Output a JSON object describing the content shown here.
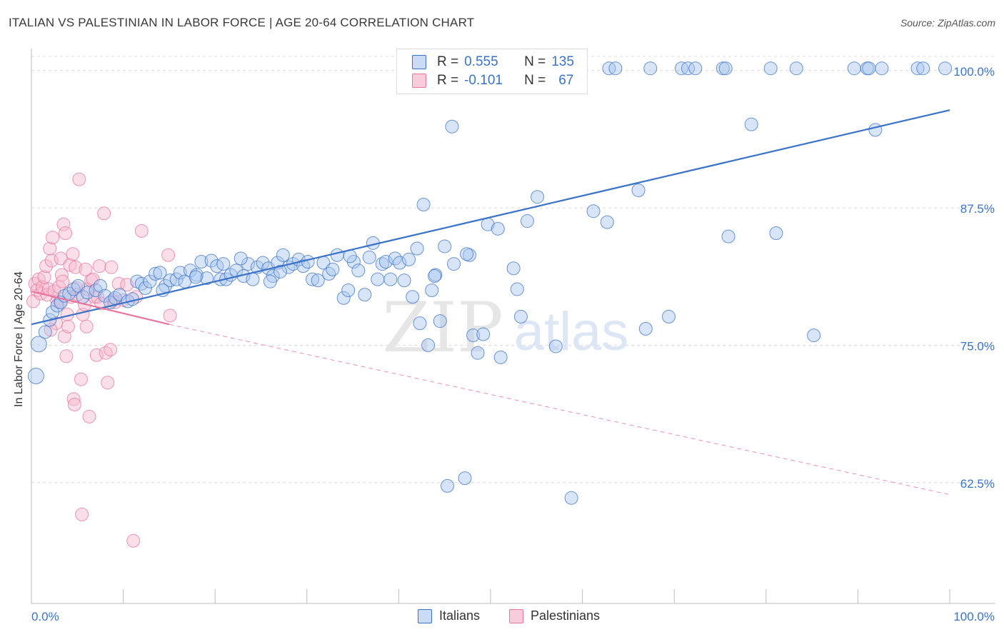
{
  "title": "ITALIAN VS PALESTINIAN IN LABOR FORCE | AGE 20-64 CORRELATION CHART",
  "source": "Source: ZipAtlas.com",
  "watermark": {
    "zip": "ZIP",
    "atlas": "atlas"
  },
  "colors": {
    "blue": "#3b73c8",
    "blue_fill": "#a9c6ef",
    "pink": "#e8769c",
    "pink_fill": "#f6b8cc",
    "grid": "#dcdcdc",
    "axis_text": "#3b73c8"
  },
  "legend_top": {
    "rows": [
      {
        "r_label": "R =",
        "r_value": "0.555",
        "n_label": "N =",
        "n_value": "135"
      },
      {
        "r_label": "R =",
        "r_value": "-0.101",
        "n_label": "N =",
        "n_value": "67"
      }
    ]
  },
  "legend_bottom": [
    "Italians",
    "Palestinians"
  ],
  "chart_data": {
    "type": "scatter",
    "title": "ITALIAN VS PALESTINIAN IN LABOR FORCE | AGE 20-64 CORRELATION CHART",
    "xlabel": "",
    "ylabel": "In Labor Force | Age 20-64",
    "xlim": [
      0,
      100
    ],
    "ylim": [
      51.5,
      102
    ],
    "x_tick_labels": [
      "0.0%",
      "100.0%"
    ],
    "y_ticks": [
      62.5,
      75.0,
      87.5,
      100.0
    ],
    "y_tick_labels": [
      "62.5%",
      "75.0%",
      "87.5%",
      "100.0%"
    ],
    "grid": true,
    "legend_position": "top-center",
    "series": [
      {
        "name": "Italians",
        "color": "#3b73c8",
        "fill": "#a9c6ef",
        "r": 0.555,
        "n": 135,
        "trend": {
          "x": [
            0,
            100
          ],
          "y": [
            76.9,
            96.4
          ],
          "style": "solid"
        },
        "points": [
          [
            0.5,
            72.2
          ],
          [
            0.8,
            75.1
          ],
          [
            1.5,
            76.2
          ],
          [
            2.0,
            77.3
          ],
          [
            2.3,
            78.0
          ],
          [
            2.8,
            78.6
          ],
          [
            3.2,
            78.9
          ],
          [
            3.6,
            79.5
          ],
          [
            4.1,
            79.7
          ],
          [
            4.6,
            80.1
          ],
          [
            5.1,
            80.4
          ],
          [
            5.6,
            79.4
          ],
          [
            6.1,
            79.8
          ],
          [
            7.0,
            80.0
          ],
          [
            7.5,
            80.4
          ],
          [
            8.0,
            79.5
          ],
          [
            8.6,
            78.9
          ],
          [
            9.1,
            79.3
          ],
          [
            9.6,
            79.6
          ],
          [
            10.5,
            79.0
          ],
          [
            11.0,
            79.2
          ],
          [
            11.5,
            80.8
          ],
          [
            12.0,
            80.6
          ],
          [
            12.4,
            80.2
          ],
          [
            12.9,
            80.8
          ],
          [
            13.5,
            81.5
          ],
          [
            14.0,
            81.6
          ],
          [
            14.6,
            80.4
          ],
          [
            15.1,
            80.9
          ],
          [
            15.8,
            81.0
          ],
          [
            16.2,
            81.6
          ],
          [
            16.7,
            80.8
          ],
          [
            17.3,
            81.8
          ],
          [
            18.0,
            81.4
          ],
          [
            18.5,
            82.6
          ],
          [
            19.1,
            81.1
          ],
          [
            19.6,
            82.7
          ],
          [
            20.2,
            82.2
          ],
          [
            20.6,
            81.0
          ],
          [
            21.2,
            81.0
          ],
          [
            21.7,
            81.4
          ],
          [
            22.3,
            81.8
          ],
          [
            23.1,
            81.3
          ],
          [
            23.6,
            82.4
          ],
          [
            24.1,
            81.0
          ],
          [
            24.6,
            82.1
          ],
          [
            25.2,
            82.5
          ],
          [
            25.8,
            82.0
          ],
          [
            26.3,
            81.3
          ],
          [
            26.8,
            82.5
          ],
          [
            27.4,
            83.2
          ],
          [
            28.0,
            82.1
          ],
          [
            28.5,
            82.4
          ],
          [
            29.1,
            82.8
          ],
          [
            29.6,
            82.2
          ],
          [
            30.1,
            82.6
          ],
          [
            30.6,
            81.0
          ],
          [
            31.2,
            80.9
          ],
          [
            31.8,
            82.5
          ],
          [
            32.4,
            81.5
          ],
          [
            32.8,
            81.9
          ],
          [
            33.3,
            83.2
          ],
          [
            34.0,
            79.3
          ],
          [
            34.5,
            80.0
          ],
          [
            35.1,
            82.6
          ],
          [
            35.6,
            81.8
          ],
          [
            36.3,
            79.6
          ],
          [
            36.8,
            83.0
          ],
          [
            37.2,
            84.3
          ],
          [
            37.7,
            81.0
          ],
          [
            38.2,
            82.4
          ],
          [
            38.6,
            82.6
          ],
          [
            39.1,
            81.0
          ],
          [
            39.6,
            82.9
          ],
          [
            40.1,
            82.5
          ],
          [
            40.6,
            80.9
          ],
          [
            41.1,
            82.8
          ],
          [
            41.5,
            79.4
          ],
          [
            42.0,
            83.8
          ],
          [
            42.3,
            77.0
          ],
          [
            42.7,
            87.8
          ],
          [
            43.2,
            75.0
          ],
          [
            43.6,
            80.0
          ],
          [
            44.0,
            81.4
          ],
          [
            44.5,
            77.2
          ],
          [
            45.0,
            84.0
          ],
          [
            45.3,
            62.2
          ],
          [
            45.8,
            94.9
          ],
          [
            47.2,
            62.9
          ],
          [
            47.7,
            83.2
          ],
          [
            48.1,
            75.9
          ],
          [
            48.6,
            74.3
          ],
          [
            49.7,
            86.0
          ],
          [
            50.8,
            85.6
          ],
          [
            51.1,
            73.9
          ],
          [
            52.5,
            82.0
          ],
          [
            52.9,
            80.1
          ],
          [
            53.3,
            77.6
          ],
          [
            54.0,
            86.3
          ],
          [
            55.1,
            88.5
          ],
          [
            57.1,
            74.9
          ],
          [
            58.8,
            61.1
          ],
          [
            61.2,
            87.2
          ],
          [
            62.7,
            86.2
          ],
          [
            62.9,
            100.2
          ],
          [
            63.6,
            100.2
          ],
          [
            66.1,
            89.1
          ],
          [
            67.4,
            100.2
          ],
          [
            69.4,
            77.6
          ],
          [
            70.8,
            100.2
          ],
          [
            71.5,
            100.2
          ],
          [
            72.3,
            100.2
          ],
          [
            75.3,
            100.2
          ],
          [
            75.6,
            100.2
          ],
          [
            75.9,
            84.9
          ],
          [
            78.4,
            95.1
          ],
          [
            80.5,
            100.2
          ],
          [
            83.3,
            100.2
          ],
          [
            85.2,
            75.9
          ],
          [
            89.6,
            100.2
          ],
          [
            91.0,
            100.2
          ],
          [
            91.2,
            100.2
          ],
          [
            91.9,
            94.6
          ],
          [
            92.6,
            100.2
          ],
          [
            96.5,
            100.2
          ],
          [
            97.1,
            100.2
          ],
          [
            99.5,
            100.2
          ],
          [
            66.9,
            76.5
          ],
          [
            81.1,
            85.2
          ],
          [
            49.2,
            76.0
          ],
          [
            14.3,
            80.0
          ],
          [
            27.1,
            81.7
          ],
          [
            34.7,
            83.1
          ],
          [
            43.9,
            81.3
          ],
          [
            46.0,
            82.4
          ],
          [
            47.4,
            83.3
          ],
          [
            26.0,
            80.8
          ],
          [
            22.8,
            82.9
          ],
          [
            17.9,
            81.2
          ],
          [
            20.9,
            82.4
          ]
        ]
      },
      {
        "name": "Palestinians",
        "color": "#e8769c",
        "fill": "#f6b8cc",
        "r": -0.101,
        "n": 67,
        "trend": {
          "x": [
            0,
            15
          ],
          "y": [
            79.9,
            76.9
          ],
          "style": "solid",
          "extended_to": [
            100,
            61.4
          ],
          "extended_style": "dashed"
        },
        "points": [
          [
            0.2,
            79.0
          ],
          [
            0.4,
            80.6
          ],
          [
            0.6,
            80.0
          ],
          [
            0.8,
            81.0
          ],
          [
            1.0,
            79.7
          ],
          [
            1.2,
            80.3
          ],
          [
            1.4,
            81.2
          ],
          [
            1.6,
            82.2
          ],
          [
            1.7,
            79.6
          ],
          [
            1.9,
            80.1
          ],
          [
            2.0,
            83.8
          ],
          [
            2.2,
            82.7
          ],
          [
            2.3,
            84.8
          ],
          [
            2.5,
            79.9
          ],
          [
            2.7,
            77.0
          ],
          [
            2.8,
            79.0
          ],
          [
            3.0,
            80.3
          ],
          [
            3.1,
            78.9
          ],
          [
            3.2,
            82.9
          ],
          [
            3.3,
            81.4
          ],
          [
            3.5,
            86.0
          ],
          [
            3.6,
            75.8
          ],
          [
            3.7,
            85.2
          ],
          [
            3.8,
            74.0
          ],
          [
            3.9,
            77.8
          ],
          [
            4.0,
            76.7
          ],
          [
            4.2,
            82.3
          ],
          [
            4.3,
            79.4
          ],
          [
            4.5,
            83.3
          ],
          [
            4.6,
            70.1
          ],
          [
            4.7,
            69.6
          ],
          [
            4.8,
            82.1
          ],
          [
            4.9,
            80.2
          ],
          [
            5.0,
            79.6
          ],
          [
            5.2,
            90.1
          ],
          [
            5.4,
            71.9
          ],
          [
            5.6,
            77.8
          ],
          [
            5.8,
            78.7
          ],
          [
            6.0,
            76.7
          ],
          [
            6.1,
            80.1
          ],
          [
            6.3,
            68.5
          ],
          [
            6.5,
            80.9
          ],
          [
            6.7,
            81.0
          ],
          [
            6.9,
            79.4
          ],
          [
            7.1,
            74.1
          ],
          [
            7.2,
            79.4
          ],
          [
            7.4,
            82.2
          ],
          [
            7.6,
            78.8
          ],
          [
            7.9,
            87.0
          ],
          [
            8.1,
            74.3
          ],
          [
            8.3,
            71.6
          ],
          [
            8.6,
            74.6
          ],
          [
            8.9,
            79.1
          ],
          [
            9.1,
            78.9
          ],
          [
            9.5,
            80.6
          ],
          [
            10.0,
            79.1
          ],
          [
            10.4,
            80.5
          ],
          [
            11.1,
            57.2
          ],
          [
            11.4,
            79.4
          ],
          [
            12.0,
            85.4
          ],
          [
            14.9,
            83.2
          ],
          [
            15.1,
            77.7
          ],
          [
            5.5,
            59.6
          ],
          [
            2.1,
            76.4
          ],
          [
            3.4,
            80.8
          ],
          [
            5.9,
            81.9
          ],
          [
            8.7,
            82.1
          ]
        ]
      }
    ]
  }
}
